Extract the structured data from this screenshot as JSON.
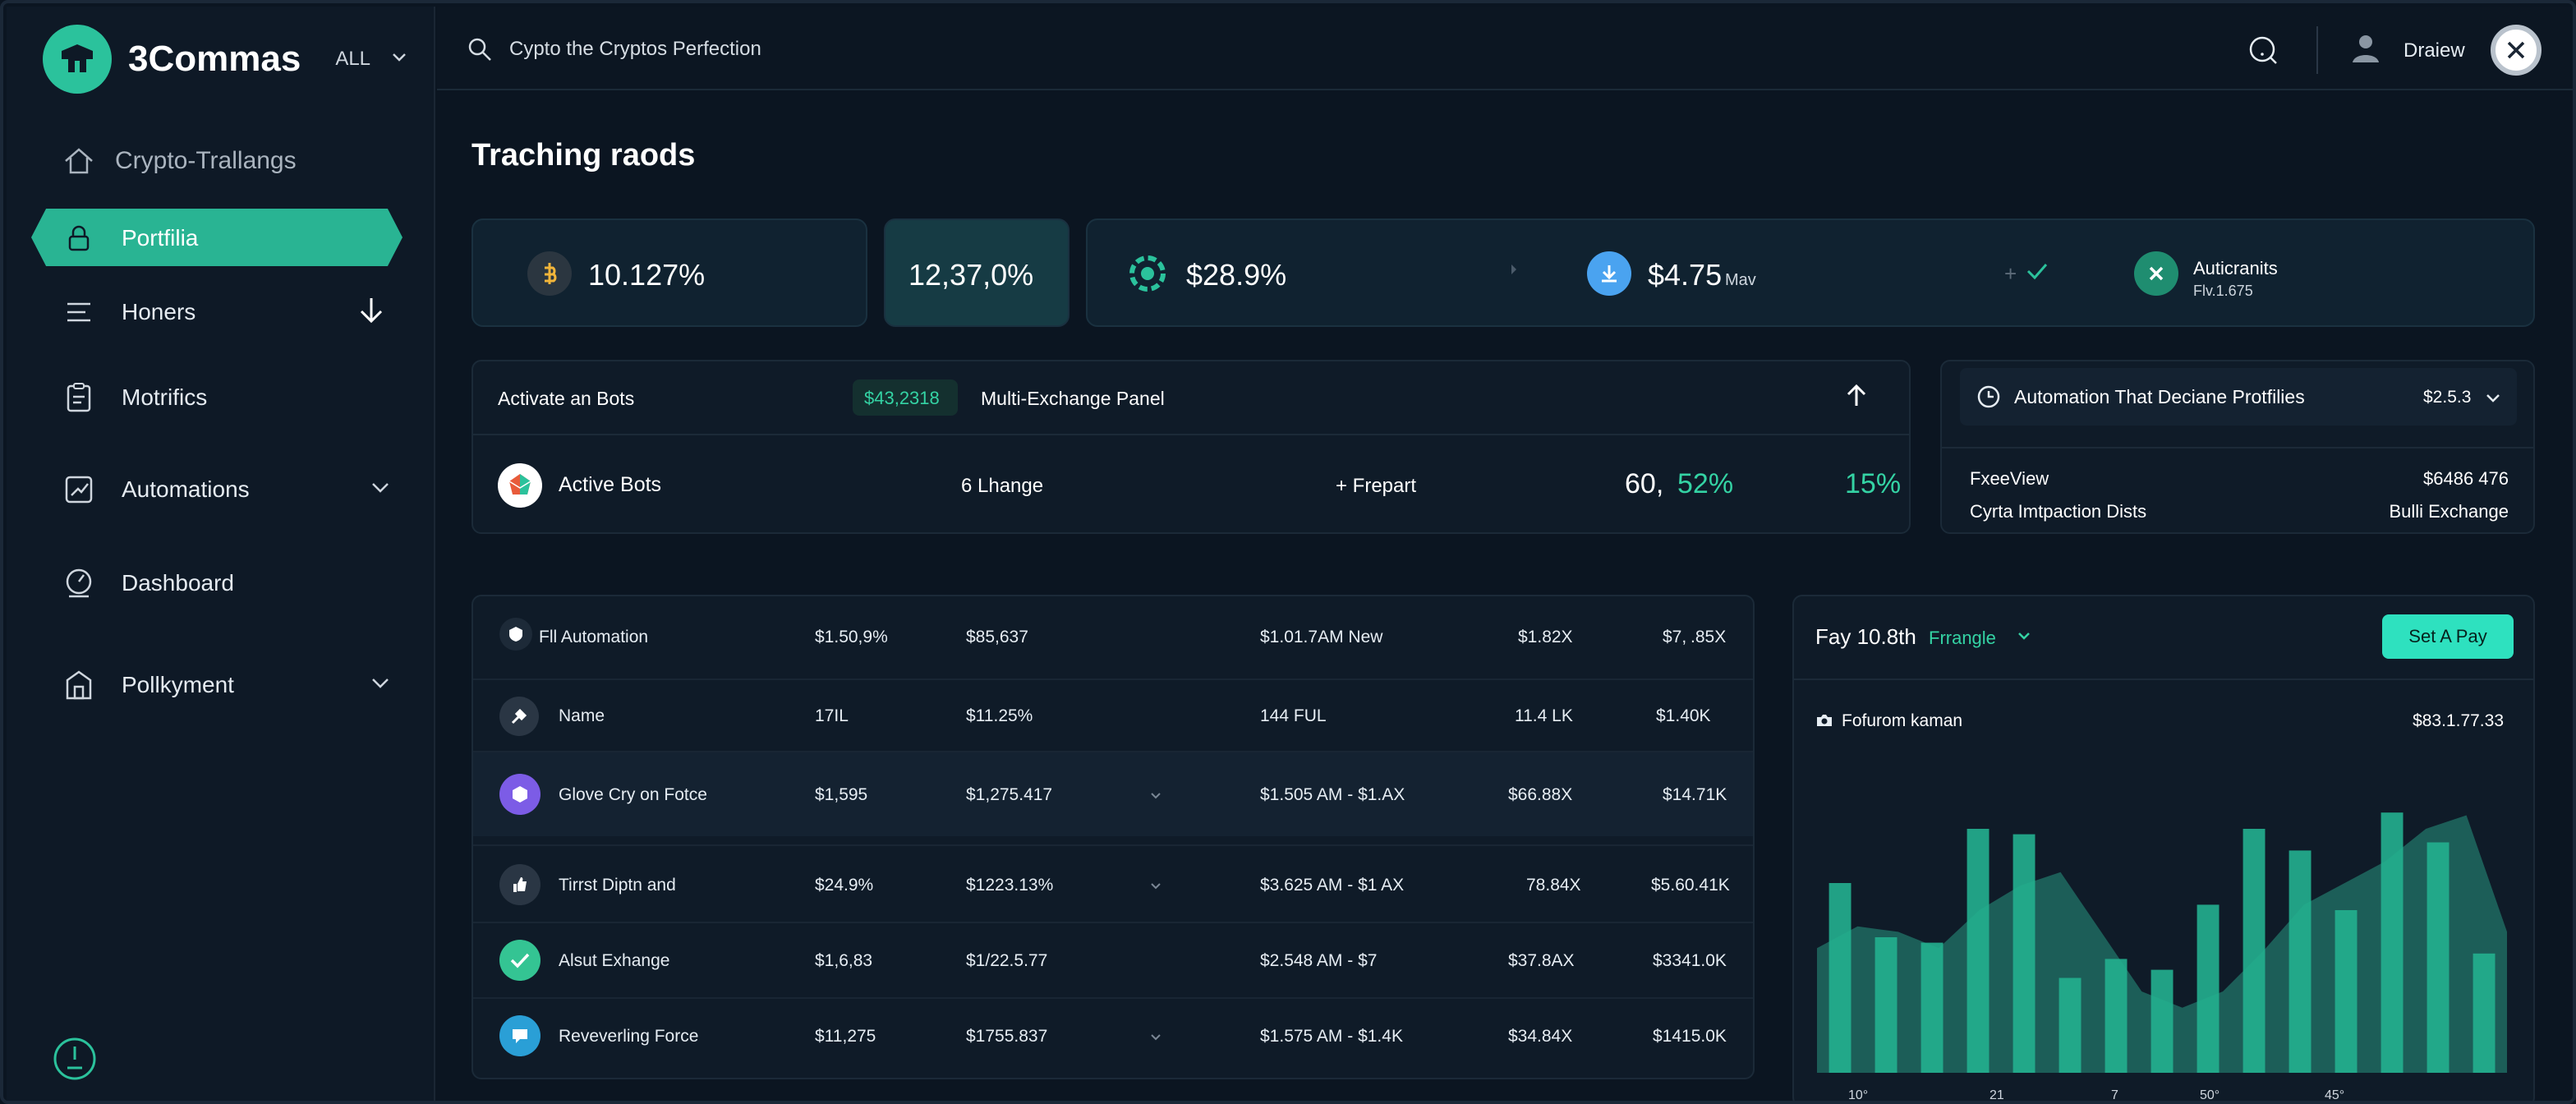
{
  "brand": {
    "name": "3Commas",
    "filter": "ALL"
  },
  "sidebar": {
    "items": [
      {
        "label": "Crypto-Trallangs"
      },
      {
        "label": "Portfilia"
      },
      {
        "label": "Honers"
      },
      {
        "label": "Motrifics"
      },
      {
        "label": "Automations"
      },
      {
        "label": "Dashboard"
      },
      {
        "label": "Pollkyment"
      }
    ]
  },
  "topbar": {
    "search_placeholder": "Cypto the Cryptos Perfection",
    "user": "Draiew"
  },
  "page": {
    "title": "Traching raods"
  },
  "stats": {
    "s1": "10.127%",
    "s2": "12,37,0%",
    "s3": "$28.9%",
    "s4": "$4.75",
    "s4_unit": "Mav",
    "s5_title": "Auticranits",
    "s5_sub": "Flv.1.675"
  },
  "bots_panel": {
    "title": "Activate an Bots",
    "badge": "$43,2318",
    "subtitle": "Multi-Exchange Panel",
    "row": {
      "label": "Active Bots",
      "exchange": "6 Lhange",
      "action": "+ Frepart",
      "val_a": "60,",
      "val_b": "52%",
      "val_c": "15%"
    }
  },
  "automation_panel": {
    "title": "Automation That Deciane Protfilies",
    "value": "$2.5.3",
    "rows": [
      {
        "label": "FxeeView",
        "value": "$6486 476"
      },
      {
        "label": "Cyrta Imtpaction Dists",
        "value": "Bulli Exchange"
      }
    ]
  },
  "table": {
    "header": {
      "name": "Fll Automation",
      "c1": "$1.50,9%",
      "c2": "$85,637",
      "c3": "$1.01.7AM New",
      "c4": "$1.82X",
      "c5": "$7,",
      "c5b": ".85X"
    },
    "rows": [
      {
        "name": "Name",
        "c1": "17IL",
        "c2": "$11.25%",
        "c3": "144 FUL",
        "c4": "11.4 LK",
        "c5": "$1.40K"
      },
      {
        "name": "Glove Cry on Fotce",
        "c1": "$1,595",
        "c2": "$1,275.417",
        "c3": "$1.505 AM  -  $1.AX",
        "c4": "$66.88X",
        "c5": "$14.71K"
      },
      {
        "name": "Tirrst Diptn and",
        "c1": "$24.9%",
        "c2": "$1223.13%",
        "c3": "$3.625 AM  -  $1 AX",
        "c4": "78.84X",
        "c5": "$5.60.41K"
      },
      {
        "name": "Alsut Exhange",
        "c1": "$1,6,83",
        "c2": "$1/22.5.77",
        "c3": "$2.548 AM  -  $7",
        "c4": "$37.8AX",
        "c5": "$3341.0K"
      },
      {
        "name": "Reveverling Force",
        "c1": "$11,275",
        "c2": "$1755.837",
        "c3": "$1.575 AM  -  $1.4K",
        "c4": "$34.84X",
        "c5": "$1415.0K"
      }
    ]
  },
  "chart_panel": {
    "title": "Fay 10.8th",
    "range": "Frrangle",
    "button": "Set A Pay",
    "label": "Fofurom kaman",
    "value": "$83.1.77.33"
  },
  "chart_data": {
    "type": "bar",
    "x_tick_labels": [
      "10°",
      "21",
      "7",
      "50°",
      "45°"
    ],
    "series": [
      {
        "values": [
          0.7,
          0.5,
          0.48,
          0.9,
          0.88,
          0.35,
          0.42,
          0.38,
          0.62,
          0.9,
          0.82,
          0.6,
          0.96,
          0.85,
          0.44
        ]
      },
      {
        "values": [
          0.46,
          0.54,
          0.52,
          0.46,
          0.6,
          0.69,
          0.74,
          0.52,
          0.3,
          0.24,
          0.3,
          0.45,
          0.62,
          0.7,
          0.78,
          0.9,
          0.95,
          0.52
        ]
      }
    ],
    "colors": {
      "bars": "#23b08f",
      "area": "#1e6a60",
      "background": "#0f1b28"
    }
  }
}
